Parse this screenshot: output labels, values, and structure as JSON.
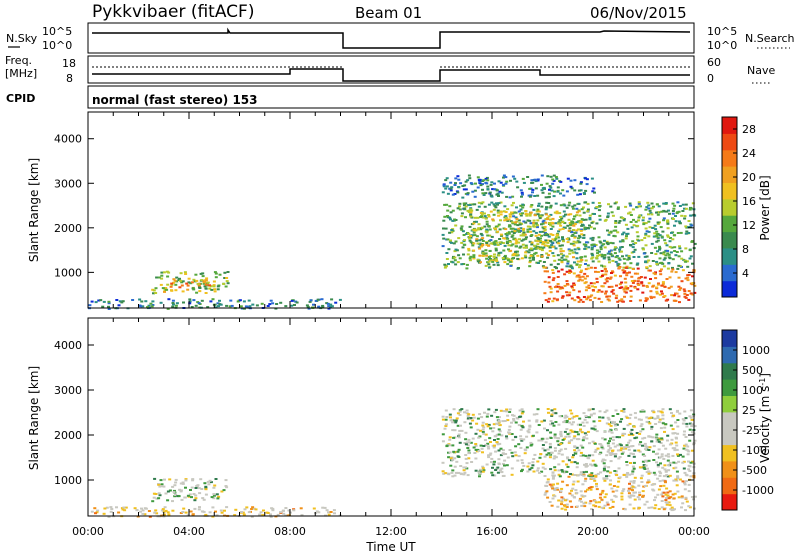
{
  "header": {
    "station": "Pykkvibaer (fitACF)",
    "beam": "Beam 01",
    "date": "06/Nov/2015"
  },
  "status": {
    "nsky_label": "N.Sky",
    "nsky_ticks": [
      "10^5",
      "10^0"
    ],
    "nsearch_label": "N.Search",
    "nsearch_ticks": [
      "10^5",
      "10^0"
    ],
    "freq_label": "Freq.",
    "freq_unit": "[MHz]",
    "freq_ticks": [
      "18",
      "8"
    ],
    "nave_label": "Nave",
    "nave_ticks": [
      "60",
      "0"
    ],
    "cpid_label": "CPID",
    "cpid_text": "normal (fast stereo) 153"
  },
  "chart_data": [
    {
      "type": "heatmap",
      "title": "",
      "xlabel": "Time UT",
      "ylabel": "Slant Range [km]",
      "xlim": [
        0,
        24
      ],
      "ylim": [
        200,
        4600
      ],
      "x_ticks": [
        "00:00",
        "04:00",
        "08:00",
        "12:00",
        "16:00",
        "20:00",
        "00:00"
      ],
      "y_ticks": [
        "1000",
        "2000",
        "3000",
        "4000"
      ],
      "colorbar": {
        "label": "Power [dB]",
        "ticks": [
          "4",
          "8",
          "12",
          "16",
          "20",
          "24",
          "28"
        ],
        "range": [
          0,
          30
        ],
        "colors": [
          "#0c2bd8",
          "#2a6bd0",
          "#2b8f86",
          "#3a8a4e",
          "#55a83c",
          "#b8cc2e",
          "#f0c020",
          "#f0a020",
          "#f57a18",
          "#ee4a14",
          "#e01810"
        ]
      },
      "echo_regions": [
        {
          "t": [
            0.0,
            10.0
          ],
          "r": [
            200,
            420
          ],
          "value": 6
        },
        {
          "t": [
            2.5,
            5.5
          ],
          "r": [
            550,
            1050
          ],
          "value": 14
        },
        {
          "t": [
            3.2,
            4.8
          ],
          "r": [
            680,
            880
          ],
          "value": 22
        },
        {
          "t": [
            14.0,
            24.0
          ],
          "r": [
            1100,
            2600
          ],
          "value": 10
        },
        {
          "t": [
            15.0,
            19.5
          ],
          "r": [
            1250,
            2400
          ],
          "value": 15
        },
        {
          "t": [
            18.0,
            24.0
          ],
          "r": [
            350,
            1150
          ],
          "value": 24
        },
        {
          "t": [
            14.0,
            20.0
          ],
          "r": [
            2700,
            3200
          ],
          "value": 6
        }
      ]
    },
    {
      "type": "heatmap",
      "title": "",
      "xlabel": "Time UT",
      "ylabel": "Slant Range [km]",
      "xlim": [
        0,
        24
      ],
      "ylim": [
        200,
        4600
      ],
      "x_ticks": [
        "00:00",
        "04:00",
        "08:00",
        "12:00",
        "16:00",
        "20:00",
        "00:00"
      ],
      "y_ticks": [
        "1000",
        "2000",
        "3000",
        "4000"
      ],
      "colorbar": {
        "label": "Velocity [m s^-1]",
        "ticks": [
          "1000",
          "500",
          "100",
          "25",
          "-25",
          "-100",
          "-500",
          "-1000"
        ],
        "colors": [
          "#1c3aa0",
          "#2e6ab0",
          "#2f7a4c",
          "#3e9a3e",
          "#8fce3c",
          "#c8c8c0",
          "#c8c8c0",
          "#f0c020",
          "#f09018",
          "#f06a14",
          "#e81a10"
        ]
      },
      "echo_regions": [
        {
          "t": [
            2.5,
            5.5
          ],
          "r": [
            550,
            1050
          ],
          "value": 0
        },
        {
          "t": [
            0.0,
            10.0
          ],
          "r": [
            200,
            420
          ],
          "value": -80
        },
        {
          "t": [
            14.0,
            24.0
          ],
          "r": [
            1100,
            2600
          ],
          "value": 0
        },
        {
          "t": [
            18.0,
            24.0
          ],
          "r": [
            350,
            1150
          ],
          "value": -150
        }
      ]
    }
  ]
}
